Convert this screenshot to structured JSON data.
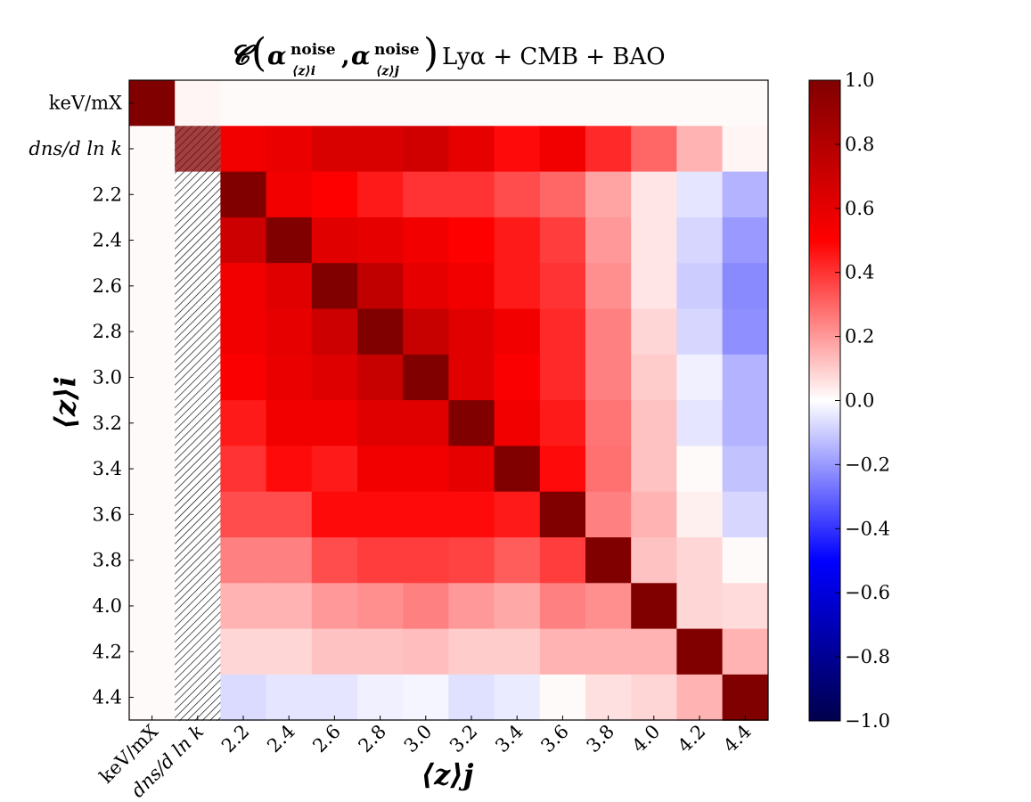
{
  "chart_data": {
    "type": "heatmap",
    "title": "𝓒 (α⟨z⟩i noise, α⟨z⟩j noise) Lyα + CMB + BAO",
    "title_parts": {
      "script_c": "𝓒",
      "alpha": "α",
      "sup": "noise",
      "sub_i": "⟨z⟩i",
      "sub_j": "⟨z⟩j",
      "comma": ",",
      "tail": "Lyα + CMB + BAO"
    },
    "xlabel": "⟨z⟩j",
    "ylabel": "⟨z⟩i",
    "x_labels": [
      "keV/mX",
      "dns/d ln k",
      "2.2",
      "2.4",
      "2.6",
      "2.8",
      "3.0",
      "3.2",
      "3.4",
      "3.6",
      "3.8",
      "4.0",
      "4.2",
      "4.4"
    ],
    "y_labels": [
      "keV/mX",
      "dns/d ln k",
      "2.2",
      "2.4",
      "2.6",
      "2.8",
      "3.0",
      "3.2",
      "3.4",
      "3.6",
      "3.8",
      "4.0",
      "4.2",
      "4.4"
    ],
    "values": [
      [
        1.0,
        0.02,
        0.01,
        0.01,
        0.01,
        0.01,
        0.01,
        0.01,
        0.01,
        0.01,
        0.01,
        0.01,
        0.01,
        0.01
      ],
      [
        0.01,
        null,
        0.55,
        0.58,
        0.65,
        0.65,
        0.68,
        0.6,
        0.48,
        0.55,
        0.42,
        0.3,
        0.15,
        0.02
      ],
      [
        0.01,
        null,
        1.0,
        0.55,
        0.5,
        0.45,
        0.4,
        0.4,
        0.35,
        0.3,
        0.18,
        0.05,
        -0.05,
        -0.15
      ],
      [
        0.01,
        null,
        0.7,
        1.0,
        0.62,
        0.6,
        0.55,
        0.5,
        0.45,
        0.38,
        0.2,
        0.05,
        -0.08,
        -0.2
      ],
      [
        0.01,
        null,
        0.55,
        0.62,
        1.0,
        0.75,
        0.6,
        0.55,
        0.45,
        0.4,
        0.22,
        0.05,
        -0.1,
        -0.23
      ],
      [
        0.01,
        null,
        0.55,
        0.6,
        0.7,
        1.0,
        0.72,
        0.62,
        0.55,
        0.42,
        0.25,
        0.08,
        -0.08,
        -0.22
      ],
      [
        0.01,
        null,
        0.52,
        0.58,
        0.63,
        0.72,
        1.0,
        0.62,
        0.52,
        0.42,
        0.25,
        0.1,
        -0.03,
        -0.15
      ],
      [
        0.01,
        null,
        0.45,
        0.55,
        0.55,
        0.62,
        0.62,
        1.0,
        0.55,
        0.45,
        0.27,
        0.12,
        -0.05,
        -0.15
      ],
      [
        0.01,
        null,
        0.4,
        0.48,
        0.45,
        0.55,
        0.55,
        0.6,
        1.0,
        0.48,
        0.28,
        0.12,
        0.01,
        -0.12
      ],
      [
        0.01,
        null,
        0.35,
        0.35,
        0.48,
        0.48,
        0.48,
        0.48,
        0.45,
        1.0,
        0.25,
        0.15,
        0.03,
        -0.08
      ],
      [
        0.01,
        null,
        0.25,
        0.25,
        0.35,
        0.38,
        0.38,
        0.37,
        0.32,
        0.38,
        1.0,
        0.12,
        0.08,
        0.01
      ],
      [
        0.01,
        null,
        0.15,
        0.15,
        0.2,
        0.22,
        0.25,
        0.2,
        0.17,
        0.25,
        0.22,
        1.0,
        0.08,
        0.07
      ],
      [
        0.01,
        null,
        0.08,
        0.08,
        0.12,
        0.12,
        0.13,
        0.1,
        0.1,
        0.15,
        0.15,
        0.15,
        1.0,
        0.15
      ],
      [
        0.01,
        null,
        -0.07,
        -0.05,
        -0.05,
        -0.03,
        -0.02,
        -0.06,
        -0.04,
        0.01,
        0.06,
        0.08,
        0.15,
        1.0
      ]
    ],
    "masked_note_hatched_cells": "column dns/d ln k",
    "colorbar": {
      "vmin": -1.0,
      "vmax": 1.0,
      "colormap": "seismic",
      "ticks": [
        1.0,
        0.8,
        0.6,
        0.4,
        0.2,
        0.0,
        -0.2,
        -0.4,
        -0.6,
        -0.8,
        -1.0
      ],
      "tick_labels": [
        "1.0",
        "0.8",
        "0.6",
        "0.4",
        "0.2",
        "0.0",
        "−0.2",
        "−0.4",
        "−0.6",
        "−0.8",
        "−1.0"
      ]
    },
    "grid": false
  }
}
